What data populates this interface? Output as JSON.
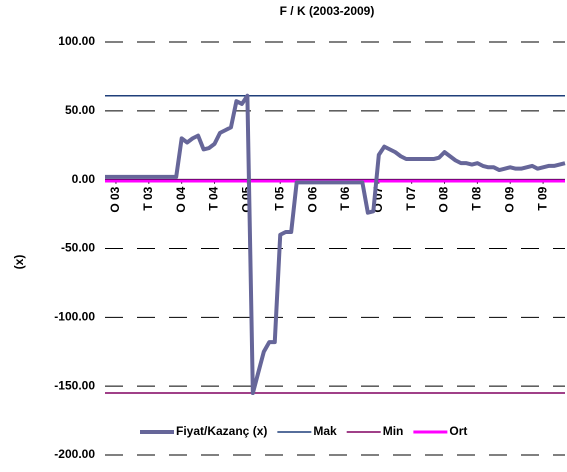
{
  "chart_data": {
    "type": "line",
    "title": "F / K (2003-2009)",
    "y_label": "(x)",
    "categories": [
      null,
      null,
      "O 03",
      null,
      null,
      null,
      null,
      null,
      "T 03",
      null,
      null,
      null,
      null,
      null,
      "O 04",
      null,
      null,
      null,
      null,
      null,
      "T 04",
      null,
      null,
      null,
      null,
      null,
      "O 05",
      null,
      null,
      null,
      null,
      null,
      "T 05",
      null,
      null,
      null,
      null,
      null,
      "O 06",
      null,
      null,
      null,
      null,
      null,
      "T 06",
      null,
      null,
      null,
      null,
      null,
      "O 07",
      null,
      null,
      null,
      null,
      null,
      "T 07",
      null,
      null,
      null,
      null,
      null,
      "O 08",
      null,
      null,
      null,
      null,
      null,
      "T 08",
      null,
      null,
      null,
      null,
      null,
      "O 09",
      null,
      null,
      null,
      null,
      null,
      "T 09",
      null,
      null,
      null,
      null
    ],
    "series": [
      {
        "name": "Fiyat/Kazanç (x)",
        "color": "#666699",
        "values": [
          2,
          2,
          2,
          2,
          2,
          2,
          2,
          2,
          2,
          2,
          2,
          2,
          2,
          2,
          30,
          27,
          30,
          32,
          22,
          23,
          26,
          34,
          36,
          38,
          57,
          55,
          61,
          -155,
          -140,
          -125,
          -118,
          -118,
          -40,
          -38,
          -38,
          -2,
          -2,
          -2,
          -2,
          -2,
          -2,
          -2,
          -2,
          -2,
          -2,
          -2,
          -2,
          -2,
          -24,
          -23,
          18,
          24,
          22,
          20,
          17,
          15,
          15,
          15,
          15,
          15,
          15,
          16,
          20,
          17,
          14,
          12,
          12,
          11,
          12,
          10,
          9,
          9,
          7,
          8,
          9,
          8,
          8,
          9,
          10,
          8,
          9,
          10,
          10,
          11,
          12
        ]
      }
    ],
    "reference_lines": [
      {
        "name": "Mak",
        "color": "#1f3f7a",
        "value": 61
      },
      {
        "name": "Min",
        "color": "#800060",
        "value": -155
      },
      {
        "name": "Ort",
        "color": "#ff00ff",
        "value": -1
      }
    ],
    "ylim": [
      -200,
      100
    ],
    "yticks": [
      {
        "value": 100,
        "label": "100.00"
      },
      {
        "value": 50,
        "label": "50.00"
      },
      {
        "value": 0,
        "label": "0.00"
      },
      {
        "value": -50,
        "label": "-50.00"
      },
      {
        "value": -100,
        "label": "-100.00"
      },
      {
        "value": -150,
        "label": "-150.00"
      },
      {
        "value": -200,
        "label": "-200.00"
      }
    ],
    "grid": true,
    "legend": "bottom"
  }
}
